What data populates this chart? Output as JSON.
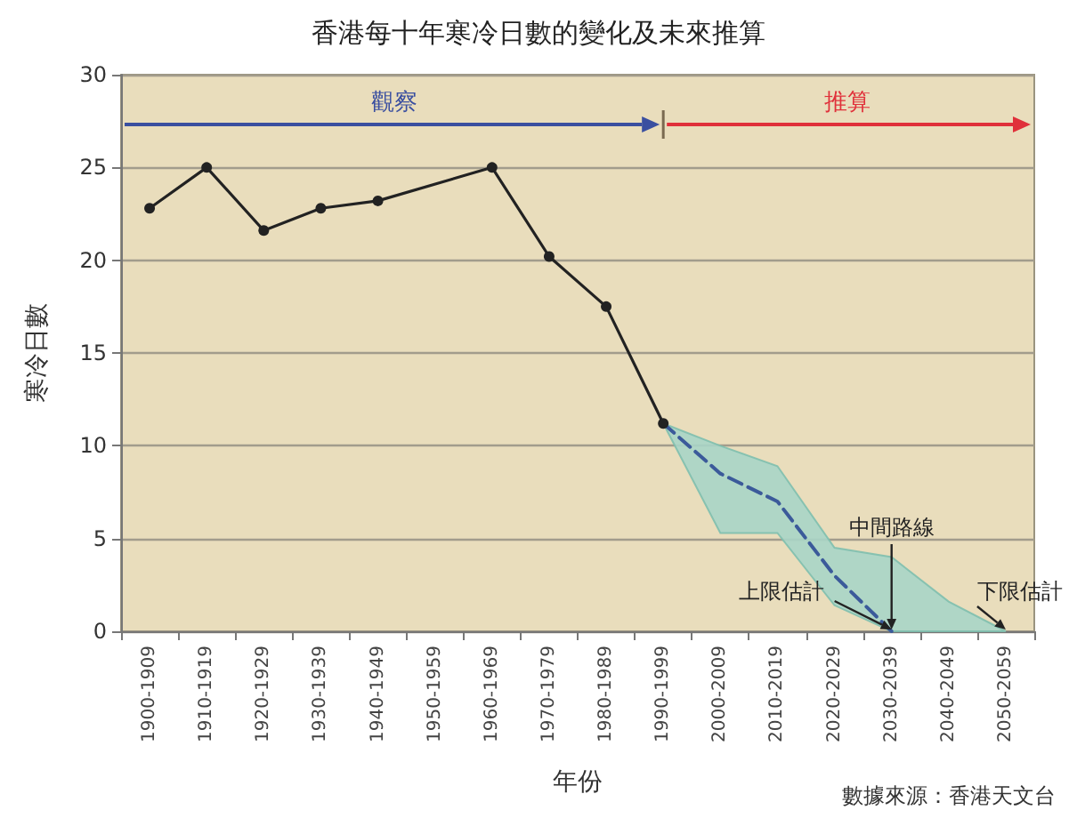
{
  "chart_data": {
    "type": "line",
    "title": "香港每十年寒冷日數的變化及未來推算",
    "xlabel": "年份",
    "ylabel": "寒冷日數",
    "categories": [
      "1900-1909",
      "1910-1919",
      "1920-1929",
      "1930-1939",
      "1940-1949",
      "1950-1959",
      "1960-1969",
      "1970-1979",
      "1980-1989",
      "1990-1999",
      "2000-2009",
      "2010-2019",
      "2020-2029",
      "2030-2039",
      "2040-2049",
      "2050-2059"
    ],
    "series": [
      {
        "color": "#222222",
        "marker": "circle",
        "line_style": "solid",
        "values": [
          22.8,
          25.0,
          21.6,
          22.8,
          23.2,
          null,
          25.0,
          20.2,
          17.5,
          11.2,
          null,
          null,
          null,
          null,
          null,
          null
        ]
      },
      {
        "color": "#3b5a9a",
        "marker": "none",
        "line_style": "dashed",
        "values": [
          null,
          null,
          null,
          null,
          null,
          null,
          null,
          null,
          null,
          11.2,
          8.5,
          7.0,
          3.0,
          0,
          null,
          null
        ],
        "lower": [
          null,
          null,
          null,
          null,
          null,
          null,
          null,
          null,
          null,
          11.2,
          5.3,
          5.3,
          1.4,
          0,
          0,
          0
        ],
        "upper": [
          null,
          null,
          null,
          null,
          null,
          null,
          null,
          null,
          null,
          11.2,
          10.0,
          8.9,
          4.5,
          4.0,
          1.6,
          0
        ]
      }
    ],
    "ylim": [
      0,
      30
    ],
    "yticks": [
      0,
      5,
      10,
      15,
      20,
      25,
      30
    ],
    "grid": "y",
    "annotations": [
      "觀察",
      "推算",
      "數據來源：香港天文台",
      {
        "text": "上限估計",
        "x": "2030-2039",
        "y": 0
      },
      {
        "text": "中間路線",
        "x": "2030-2039",
        "y": 0
      },
      {
        "text": "下限估計",
        "x": "2050-2059",
        "y": 0
      }
    ]
  }
}
